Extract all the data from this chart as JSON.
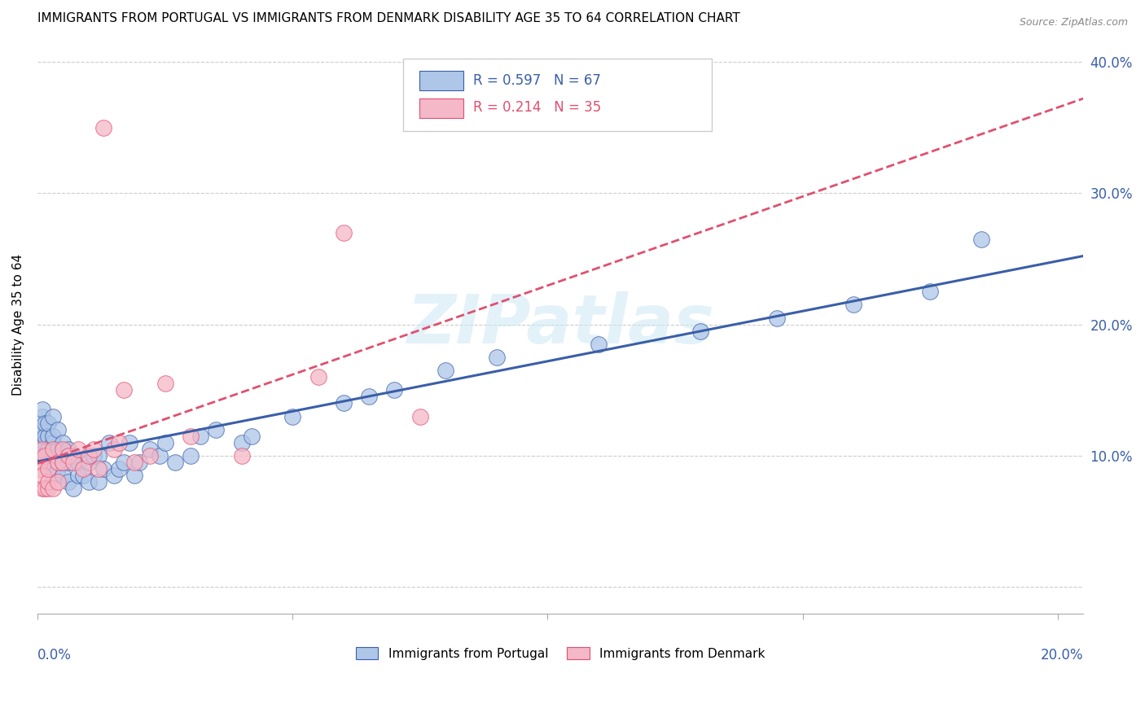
{
  "title": "IMMIGRANTS FROM PORTUGAL VS IMMIGRANTS FROM DENMARK DISABILITY AGE 35 TO 64 CORRELATION CHART",
  "source": "Source: ZipAtlas.com",
  "ylabel": "Disability Age 35 to 64",
  "xlim": [
    0.0,
    0.205
  ],
  "ylim": [
    -0.02,
    0.42
  ],
  "ytick_vals": [
    0.0,
    0.1,
    0.2,
    0.3,
    0.4
  ],
  "ytick_labels": [
    "",
    "10.0%",
    "20.0%",
    "30.0%",
    "40.0%"
  ],
  "xtick_vals": [
    0.0,
    0.05,
    0.1,
    0.15,
    0.2
  ],
  "series1_color": "#aec6e8",
  "series2_color": "#f4b8c8",
  "line1_color": "#3a5fa8",
  "line2_color": "#e05070",
  "R1": 0.597,
  "N1": 67,
  "R2": 0.214,
  "N2": 35,
  "legend1": "Immigrants from Portugal",
  "legend2": "Immigrants from Denmark",
  "watermark": "ZIPatlas",
  "portugal_x": [
    0.0005,
    0.0005,
    0.001,
    0.001,
    0.001,
    0.001,
    0.001,
    0.0015,
    0.0015,
    0.0015,
    0.002,
    0.002,
    0.002,
    0.002,
    0.003,
    0.003,
    0.003,
    0.003,
    0.003,
    0.004,
    0.004,
    0.004,
    0.005,
    0.005,
    0.005,
    0.006,
    0.006,
    0.006,
    0.007,
    0.007,
    0.008,
    0.008,
    0.009,
    0.01,
    0.01,
    0.011,
    0.012,
    0.012,
    0.013,
    0.014,
    0.015,
    0.016,
    0.017,
    0.018,
    0.019,
    0.02,
    0.022,
    0.024,
    0.025,
    0.027,
    0.03,
    0.032,
    0.035,
    0.04,
    0.042,
    0.05,
    0.06,
    0.065,
    0.07,
    0.08,
    0.09,
    0.11,
    0.13,
    0.145,
    0.16,
    0.175,
    0.185
  ],
  "portugal_y": [
    0.115,
    0.12,
    0.1,
    0.11,
    0.12,
    0.13,
    0.135,
    0.11,
    0.115,
    0.125,
    0.09,
    0.105,
    0.115,
    0.125,
    0.085,
    0.1,
    0.11,
    0.115,
    0.13,
    0.09,
    0.105,
    0.12,
    0.085,
    0.095,
    0.11,
    0.08,
    0.095,
    0.105,
    0.075,
    0.1,
    0.085,
    0.095,
    0.085,
    0.08,
    0.095,
    0.1,
    0.08,
    0.1,
    0.09,
    0.11,
    0.085,
    0.09,
    0.095,
    0.11,
    0.085,
    0.095,
    0.105,
    0.1,
    0.11,
    0.095,
    0.1,
    0.115,
    0.12,
    0.11,
    0.115,
    0.13,
    0.14,
    0.145,
    0.15,
    0.165,
    0.175,
    0.185,
    0.195,
    0.205,
    0.215,
    0.225,
    0.265
  ],
  "denmark_x": [
    0.0003,
    0.0005,
    0.001,
    0.001,
    0.001,
    0.0015,
    0.0015,
    0.002,
    0.002,
    0.002,
    0.003,
    0.003,
    0.004,
    0.004,
    0.005,
    0.005,
    0.006,
    0.007,
    0.008,
    0.009,
    0.01,
    0.011,
    0.012,
    0.013,
    0.015,
    0.016,
    0.017,
    0.019,
    0.022,
    0.025,
    0.03,
    0.04,
    0.055,
    0.06,
    0.075
  ],
  "denmark_y": [
    0.09,
    0.095,
    0.075,
    0.085,
    0.105,
    0.075,
    0.1,
    0.075,
    0.08,
    0.09,
    0.075,
    0.105,
    0.08,
    0.095,
    0.095,
    0.105,
    0.1,
    0.095,
    0.105,
    0.09,
    0.1,
    0.105,
    0.09,
    0.35,
    0.105,
    0.11,
    0.15,
    0.095,
    0.1,
    0.155,
    0.115,
    0.1,
    0.16,
    0.27,
    0.13
  ]
}
